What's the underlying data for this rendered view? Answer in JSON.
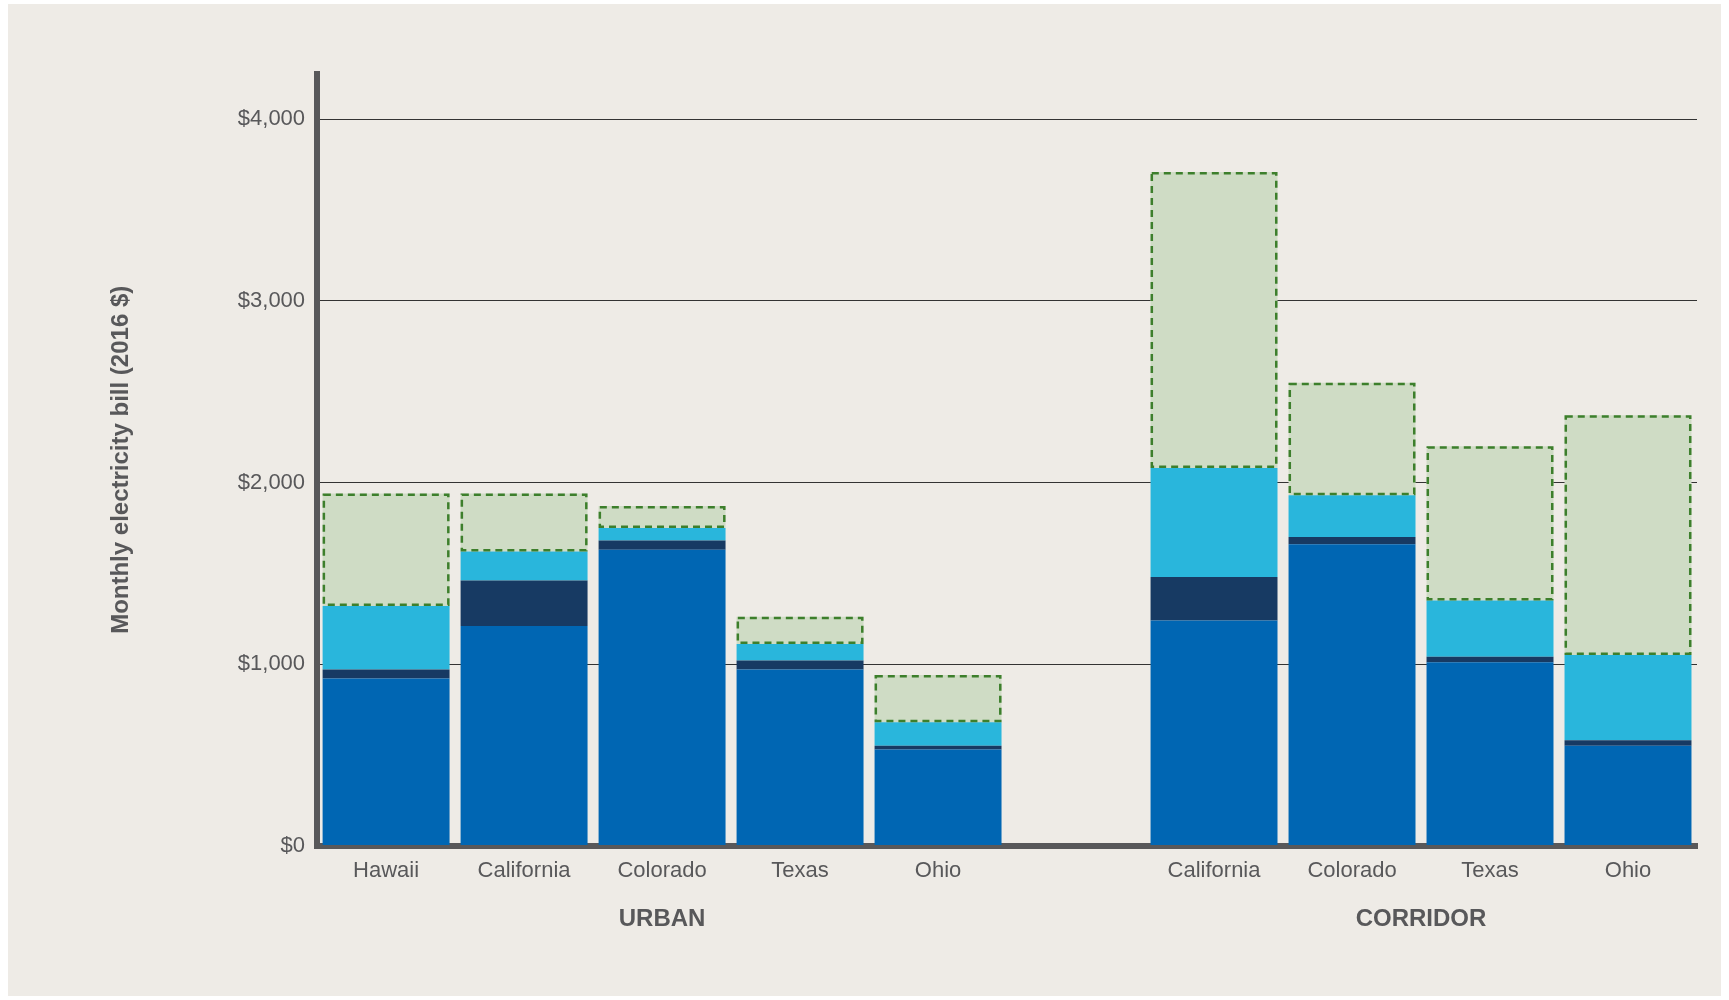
{
  "chart_data": {
    "type": "bar",
    "stacked": true,
    "ylabel": "Monthly electricity bill (2016 $)",
    "categories": [
      "Hawaii",
      "California",
      "Colorado",
      "Texas",
      "Ohio",
      null,
      "California",
      "Colorado",
      "Texas",
      "Ohio"
    ],
    "series": [
      {
        "color": "#0066b3",
        "values": [
          920,
          1210,
          1630,
          970,
          530,
          null,
          1240,
          1660,
          1010,
          550
        ]
      },
      {
        "color": "#173a63",
        "values": [
          50,
          250,
          50,
          50,
          20,
          null,
          240,
          40,
          30,
          30
        ]
      },
      {
        "color": "#29b6dc",
        "values": [
          350,
          160,
          70,
          90,
          130,
          null,
          600,
          230,
          310,
          470
        ]
      },
      {
        "color": "#cfdcc5",
        "line_style": "dashed",
        "values": [
          620,
          320,
          120,
          150,
          260,
          null,
          1630,
          620,
          850,
          1320
        ]
      }
    ],
    "ylim": [
      0,
      4250
    ],
    "yticks": [
      {
        "value": 0,
        "label": "$0"
      },
      {
        "value": 1000,
        "label": "$1,000"
      },
      {
        "value": 2000,
        "label": "$2,000"
      },
      {
        "value": 3000,
        "label": "$3,000"
      },
      {
        "value": 4000,
        "label": "$4,000"
      }
    ],
    "grid": "y",
    "legend": false,
    "annotations": [
      "URBAN",
      "CORRIDOR"
    ]
  }
}
